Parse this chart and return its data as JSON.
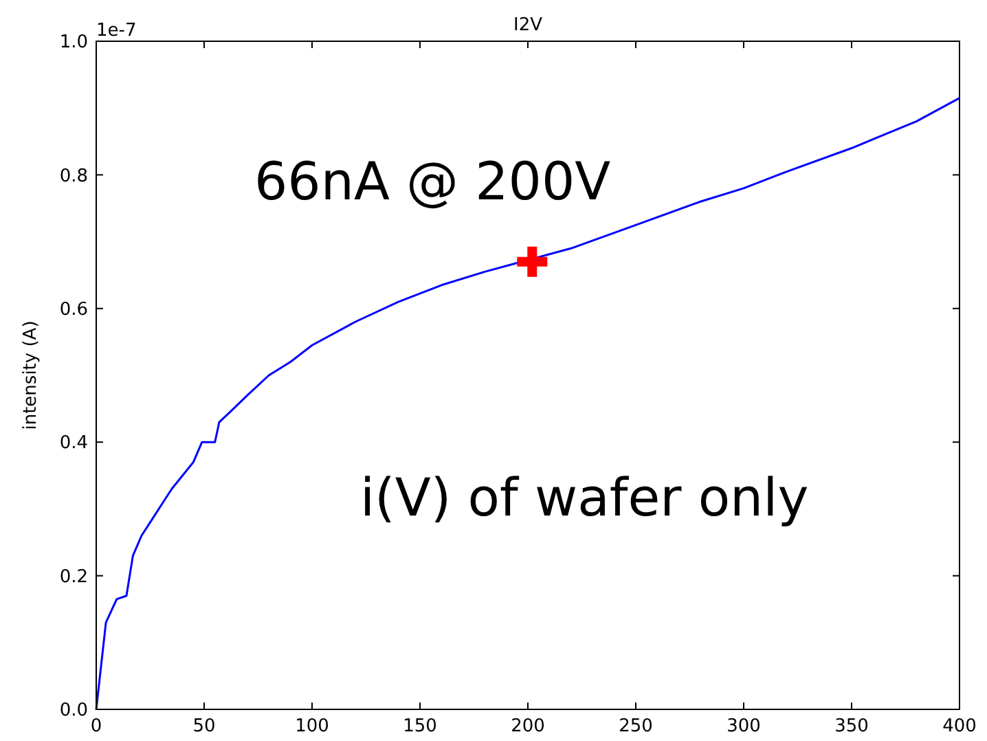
{
  "chart_data": {
    "type": "line",
    "title": "I2V",
    "ylabel": "intensity (A)",
    "xlim": [
      0,
      400
    ],
    "xticks": [
      0,
      50,
      100,
      150,
      200,
      250,
      300,
      350,
      400
    ],
    "ylim": [
      0,
      1.0
    ],
    "yticks": [
      {
        "value": 0,
        "label": "0.0"
      },
      0.2,
      0.4,
      0.6,
      0.8,
      {
        "value": 1.0,
        "label": "1.0"
      }
    ],
    "grid": false,
    "annotations": [
      "1e-7",
      "66nA @ 200V",
      "i(V) of wafer only"
    ],
    "series": [
      {
        "color": "#0000ff",
        "marker": "none",
        "line_style": "solid",
        "x": [
          0,
          4.5,
          9.5,
          14,
          17,
          21,
          25,
          30,
          35,
          40,
          45,
          49,
          55,
          57,
          62,
          70,
          80,
          90,
          100,
          120,
          140,
          160,
          180,
          200,
          220,
          250,
          280,
          300,
          320,
          350,
          380,
          400
        ],
        "values": [
          0,
          0.13,
          0.165,
          0.17,
          0.23,
          0.26,
          0.28,
          0.305,
          0.33,
          0.35,
          0.37,
          0.4,
          0.4,
          0.43,
          0.445,
          0.47,
          0.5,
          0.52,
          0.545,
          0.58,
          0.61,
          0.635,
          0.655,
          null,
          0.69,
          0.725,
          0.76,
          0.78,
          0.805,
          0.84,
          0.88,
          0.915
        ]
      },
      {
        "type": "scatter",
        "color": "#ff0000",
        "marker": "cross",
        "x": [
          202
        ],
        "values": [
          0.67
        ]
      }
    ]
  }
}
